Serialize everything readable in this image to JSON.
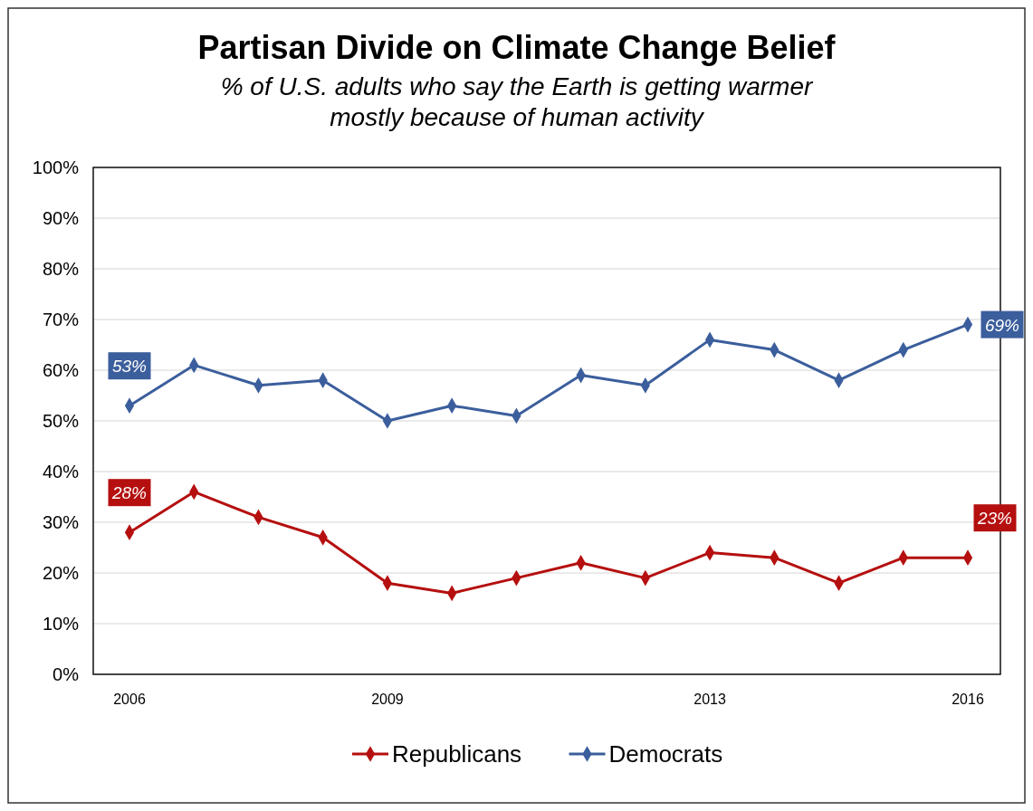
{
  "chart_data": {
    "type": "line",
    "title": "Partisan Divide on Climate Change Belief",
    "subtitle": "% of U.S. adults who say the Earth is getting warmer mostly because of human activity",
    "categories": [
      "2006",
      null,
      null,
      null,
      "2009",
      null,
      null,
      null,
      null,
      "2013",
      null,
      null,
      null,
      "2016"
    ],
    "series": [
      {
        "name": "Republicans",
        "color": "#b50f0f",
        "values": [
          28,
          36,
          31,
          27,
          18,
          16,
          19,
          22,
          19,
          24,
          23,
          18,
          23,
          23
        ],
        "value_labels": [
          "28%",
          null,
          null,
          null,
          null,
          null,
          null,
          null,
          null,
          null,
          null,
          null,
          null,
          "23%"
        ]
      },
      {
        "name": "Democrats",
        "color": "#3b5e9c",
        "values": [
          53,
          61,
          57,
          58,
          50,
          53,
          51,
          59,
          57,
          66,
          64,
          58,
          64,
          69
        ],
        "value_labels": [
          "53%",
          null,
          null,
          null,
          null,
          null,
          null,
          null,
          null,
          null,
          null,
          null,
          null,
          "69%"
        ]
      }
    ],
    "ylim": [
      0,
      100
    ],
    "yticks": [
      {
        "value": 0,
        "label": "0%"
      },
      {
        "value": 10,
        "label": "10%"
      },
      {
        "value": 20,
        "label": "20%"
      },
      {
        "value": 30,
        "label": "30%"
      },
      {
        "value": 40,
        "label": "40%"
      },
      {
        "value": 50,
        "label": "50%"
      },
      {
        "value": 60,
        "label": "60%"
      },
      {
        "value": 70,
        "label": "70%"
      },
      {
        "value": 80,
        "label": "80%"
      },
      {
        "value": 90,
        "label": "90%"
      },
      {
        "value": 100,
        "label": "100%"
      }
    ],
    "grid": "y",
    "legend": "bottom",
    "marker": "diamond",
    "line_style": "solid"
  }
}
